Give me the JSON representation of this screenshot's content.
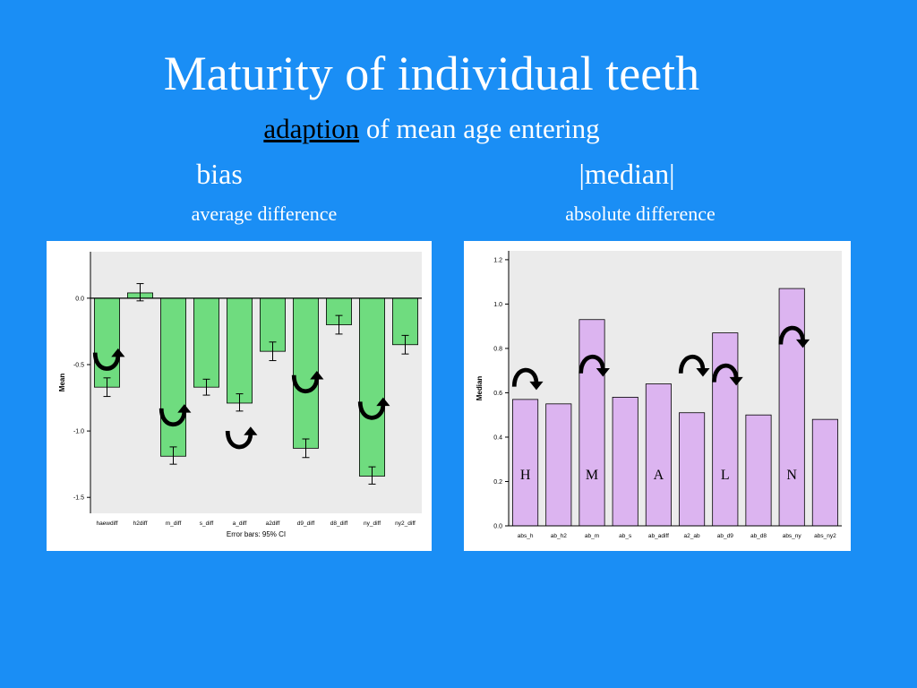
{
  "slide": {
    "title": "Maturity of individual teeth",
    "subtitle_underlined": "adaption",
    "subtitle_rest": " of mean age entering",
    "col_left_heading": "bias",
    "col_right_heading": "|median|",
    "col_left_sub": "average difference",
    "col_right_sub": "absolute difference"
  },
  "colors": {
    "background": "#1a8ef5",
    "bias_bar": "#6fdc7f",
    "median_bar": "#dcb4f0",
    "plot_bg": "#ebebeb",
    "arrow": "#000000"
  },
  "icons": [
    "curved-arrow-icon"
  ],
  "chart_data": [
    {
      "type": "bar",
      "categories": [
        "haewdiff",
        "h2diff",
        "m_diff",
        "s_diff",
        "a_diff",
        "a2diff",
        "d9_diff",
        "d8_diff",
        "ny_diff",
        "ny2_diff"
      ],
      "values": [
        -0.67,
        0.04,
        -1.19,
        -0.67,
        -0.79,
        -0.4,
        -1.13,
        -0.2,
        -1.34,
        -0.35
      ],
      "error_low": [
        -0.74,
        -0.02,
        -1.25,
        -0.73,
        -0.85,
        -0.47,
        -1.2,
        -0.27,
        -1.4,
        -0.42
      ],
      "error_high": [
        -0.6,
        0.11,
        -1.12,
        -0.61,
        -0.72,
        -0.33,
        -1.06,
        -0.13,
        -1.27,
        -0.28
      ],
      "ylabel": "Mean",
      "xlabel": "",
      "note": "Error bars: 95% CI",
      "ylim": [
        -1.62,
        0.35
      ],
      "yticks": [
        0.0,
        -0.5,
        -1.0,
        -1.5
      ],
      "ytick_labels": [
        "0.0",
        "-0.5",
        "-1.0",
        "-1.5"
      ],
      "grid": false,
      "arrows": [
        {
          "category": "haewdiff",
          "value": -0.48,
          "orientation": "up"
        },
        {
          "category": "m_diff",
          "value": -0.9,
          "orientation": "up"
        },
        {
          "category": "a_diff",
          "value": -1.07,
          "orientation": "up"
        },
        {
          "category": "d9_diff",
          "value": -0.65,
          "orientation": "up"
        },
        {
          "category": "ny_diff",
          "value": -0.85,
          "orientation": "up"
        }
      ]
    },
    {
      "type": "bar",
      "categories": [
        "abs_h",
        "ab_h2",
        "ab_m",
        "ab_s",
        "ab_adiff",
        "a2_ab",
        "ab_d9",
        "ab_d8",
        "abs_ny",
        "abs_ny2"
      ],
      "values": [
        0.57,
        0.55,
        0.93,
        0.58,
        0.64,
        0.51,
        0.87,
        0.5,
        1.07,
        0.48
      ],
      "ylabel": "Median",
      "xlabel": "",
      "ylim": [
        0.0,
        1.24
      ],
      "yticks": [
        0.0,
        0.2,
        0.4,
        0.6,
        0.8,
        1.0,
        1.2
      ],
      "ytick_labels": [
        "0.0",
        "0.2",
        "0.4",
        "0.6",
        "0.8",
        "1.0",
        "1.2"
      ],
      "grid": false,
      "annotations": [
        {
          "text": "H",
          "category": "abs_h",
          "value": 0.21
        },
        {
          "text": "M",
          "category": "ab_m",
          "value": 0.21
        },
        {
          "text": "A",
          "category": "ab_adiff",
          "value": 0.21
        },
        {
          "text": "L",
          "category": "ab_d9",
          "value": 0.21
        },
        {
          "text": "N",
          "category": "abs_ny",
          "value": 0.21
        }
      ],
      "arrows": [
        {
          "category": "abs_h",
          "value": 0.67,
          "orientation": "down"
        },
        {
          "category": "ab_m",
          "value": 0.73,
          "orientation": "down"
        },
        {
          "category": "a2_ab",
          "value": 0.73,
          "orientation": "down"
        },
        {
          "category": "ab_d9",
          "value": 0.69,
          "orientation": "down"
        },
        {
          "category": "abs_ny",
          "value": 0.86,
          "orientation": "down"
        }
      ]
    }
  ]
}
